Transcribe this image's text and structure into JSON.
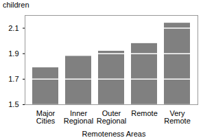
{
  "chart_data": {
    "type": "bar",
    "y_label": "children",
    "x_label": "Remoteness Areas",
    "categories": [
      "Major Cities",
      "Inner Regional",
      "Outer Regional",
      "Remote",
      "Very Remote"
    ],
    "values": [
      1.79,
      1.88,
      1.92,
      1.98,
      2.14
    ],
    "color": "#808080",
    "ylim": [
      1.5,
      2.2
    ],
    "yticks": [
      1.5,
      1.7,
      1.9,
      2.1
    ],
    "grid": true
  }
}
